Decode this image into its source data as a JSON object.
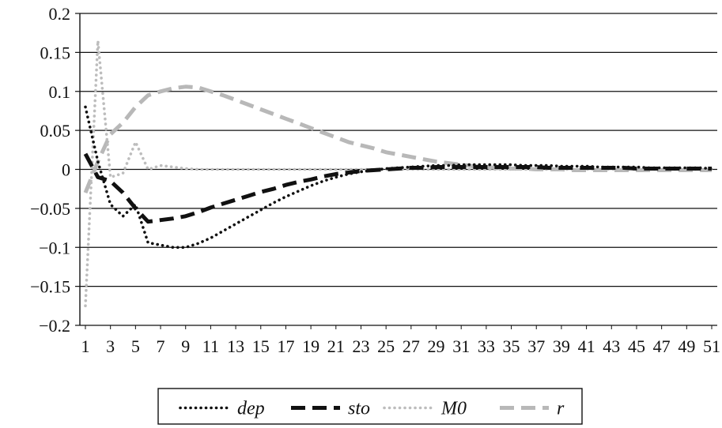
{
  "chart_data": {
    "type": "line",
    "title": "",
    "xlabel": "",
    "ylabel": "",
    "x": [
      1,
      2,
      3,
      4,
      5,
      6,
      7,
      8,
      9,
      10,
      11,
      12,
      13,
      14,
      15,
      16,
      17,
      18,
      19,
      20,
      21,
      22,
      23,
      24,
      25,
      26,
      27,
      28,
      29,
      30,
      31,
      32,
      33,
      34,
      35,
      36,
      37,
      38,
      39,
      40,
      41,
      42,
      43,
      44,
      45,
      46,
      47,
      48,
      49,
      50,
      51
    ],
    "x_tick_labels": [
      "1",
      "3",
      "5",
      "7",
      "9",
      "11",
      "13",
      "15",
      "17",
      "19",
      "21",
      "23",
      "25",
      "27",
      "29",
      "31",
      "33",
      "35",
      "37",
      "39",
      "41",
      "43",
      "45",
      "47",
      "49",
      "51"
    ],
    "y_tick_labels": [
      "0.2",
      "0.15",
      "0.1",
      "0.05",
      "0",
      "−0.05",
      "−0.1",
      "−0.15",
      "−0.2"
    ],
    "ylim": [
      -0.2,
      0.2
    ],
    "y_ticks": [
      0.2,
      0.15,
      0.1,
      0.05,
      0,
      -0.05,
      -0.1,
      -0.15,
      -0.2
    ],
    "grid": "horizontal",
    "legend_position": "bottom-center",
    "series": [
      {
        "name": "dep",
        "style": "dotted",
        "color": "#111111",
        "values": [
          0.08,
          0.01,
          -0.045,
          -0.06,
          -0.045,
          -0.094,
          -0.097,
          -0.1,
          -0.1,
          -0.095,
          -0.088,
          -0.079,
          -0.07,
          -0.061,
          -0.052,
          -0.043,
          -0.035,
          -0.028,
          -0.021,
          -0.015,
          -0.01,
          -0.006,
          -0.003,
          -0.001,
          0.001,
          0.002,
          0.003,
          0.004,
          0.005,
          0.005,
          0.006,
          0.006,
          0.006,
          0.006,
          0.006,
          0.005,
          0.005,
          0.005,
          0.004,
          0.004,
          0.004,
          0.003,
          0.003,
          0.003,
          0.003,
          0.002,
          0.002,
          0.002,
          0.002,
          0.002,
          0.001
        ]
      },
      {
        "name": "sto",
        "style": "dashed",
        "color": "#111111",
        "values": [
          0.02,
          -0.01,
          -0.015,
          -0.03,
          -0.05,
          -0.067,
          -0.065,
          -0.063,
          -0.06,
          -0.055,
          -0.049,
          -0.044,
          -0.039,
          -0.034,
          -0.029,
          -0.025,
          -0.02,
          -0.016,
          -0.013,
          -0.009,
          -0.006,
          -0.004,
          -0.002,
          -0.001,
          0.0,
          0.001,
          0.002,
          0.002,
          0.003,
          0.003,
          0.003,
          0.003,
          0.003,
          0.003,
          0.003,
          0.003,
          0.003,
          0.002,
          0.002,
          0.002,
          0.002,
          0.002,
          0.002,
          0.002,
          0.001,
          0.001,
          0.001,
          0.001,
          0.001,
          0.001,
          0.001
        ]
      },
      {
        "name": "M0",
        "style": "dotted",
        "color": "#bdbdbd",
        "values": [
          -0.175,
          0.165,
          -0.01,
          -0.005,
          0.035,
          0.0,
          0.005,
          0.003,
          0.001,
          0.0,
          0.0,
          0.0,
          0.0,
          0.0,
          0.0,
          0.0,
          0.0,
          0.0,
          0.0,
          0.0,
          0.0,
          0.0,
          0.0,
          0.0,
          0.0,
          0.0,
          0.0,
          0.0,
          0.0,
          0.0,
          0.0,
          0.0,
          0.0,
          0.0,
          0.0,
          0.0,
          0.0,
          0.0,
          0.0,
          0.0,
          0.0,
          0.0,
          0.0,
          0.0,
          0.0,
          0.0,
          0.0,
          0.0,
          0.0,
          0.0,
          0.0
        ]
      },
      {
        "name": "r",
        "style": "dashed",
        "color": "#b8b8b8",
        "values": [
          -0.03,
          0.01,
          0.045,
          0.06,
          0.08,
          0.095,
          0.1,
          0.104,
          0.106,
          0.105,
          0.1,
          0.095,
          0.089,
          0.083,
          0.077,
          0.071,
          0.065,
          0.059,
          0.053,
          0.047,
          0.041,
          0.035,
          0.031,
          0.027,
          0.022,
          0.019,
          0.016,
          0.013,
          0.01,
          0.008,
          0.006,
          0.004,
          0.003,
          0.002,
          0.001,
          0.001,
          0.0,
          0.0,
          0.0,
          -0.001,
          -0.001,
          -0.001,
          -0.001,
          -0.001,
          -0.001,
          -0.001,
          -0.001,
          -0.001,
          -0.001,
          -0.001,
          -0.001
        ]
      }
    ]
  }
}
